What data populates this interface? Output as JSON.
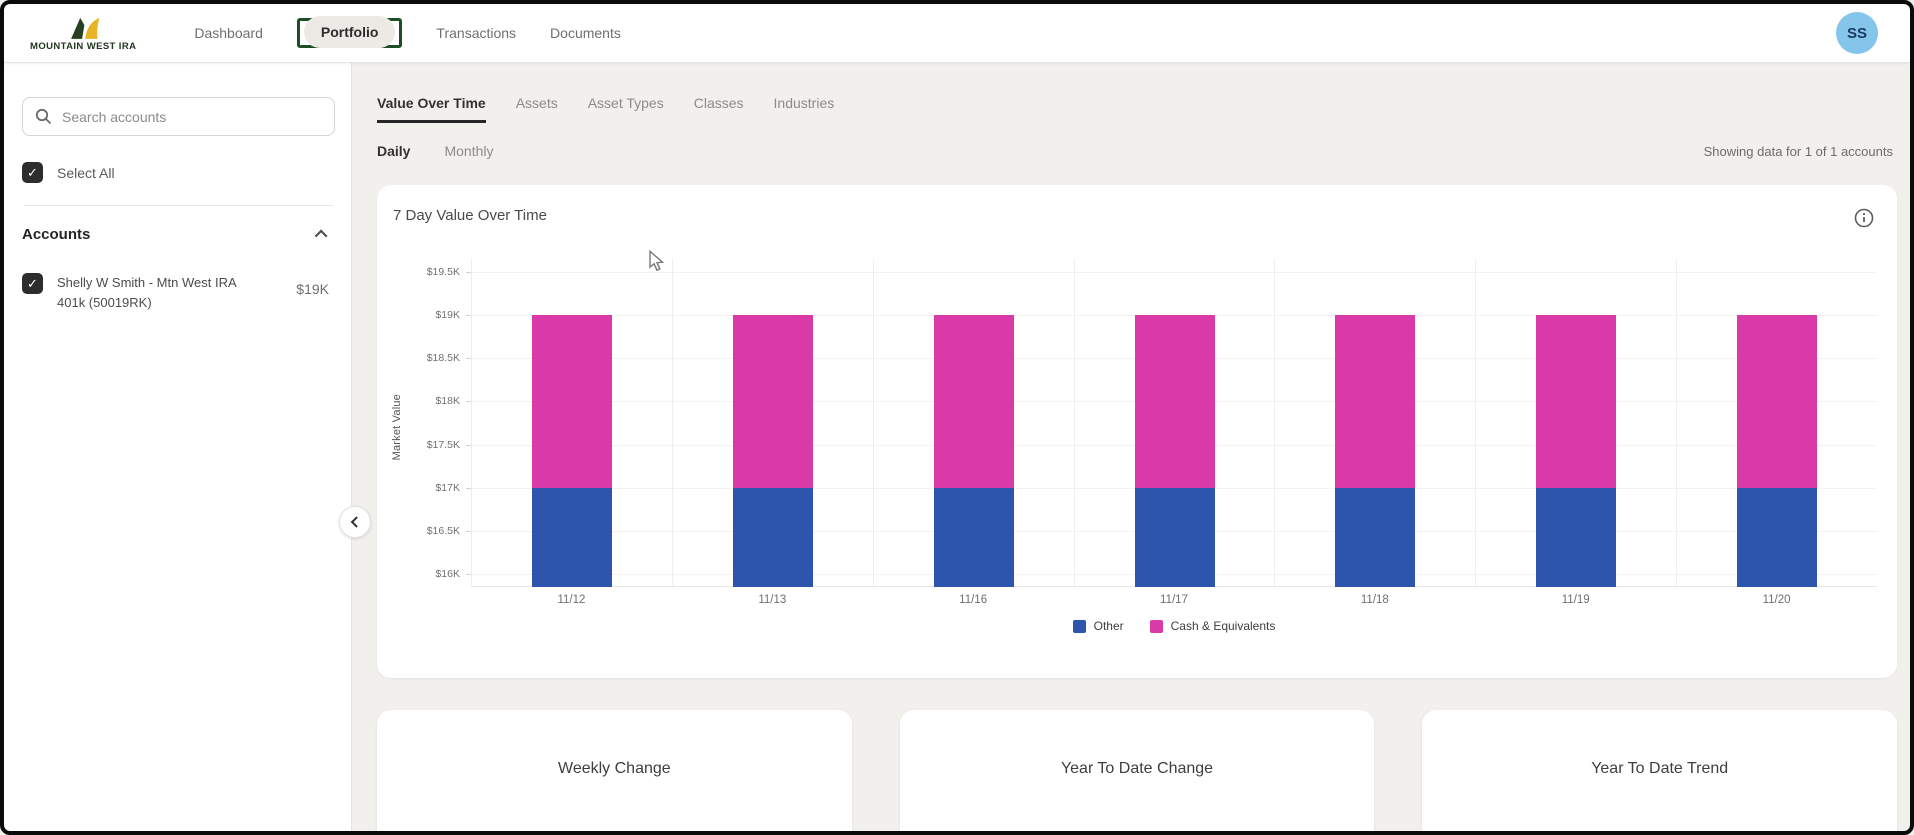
{
  "colors": {
    "annotation_green": "#1d4e27",
    "avatar_bg": "#85c5ec",
    "bar_other_blue": "#2e55ad",
    "bar_cash_pink": "#d93aa7",
    "page_background": "#f2f0ed"
  },
  "navbar": {
    "brand": "MOUNTAIN WEST IRA",
    "items": [
      {
        "label": "Dashboard",
        "active": false
      },
      {
        "label": "Portfolio",
        "active": true
      },
      {
        "label": "Transactions",
        "active": false
      },
      {
        "label": "Documents",
        "active": false
      }
    ],
    "avatar_initials": "SS"
  },
  "sidebar": {
    "search_placeholder": "Search accounts",
    "select_all": "Select All",
    "accounts_header": "Accounts",
    "accounts": [
      {
        "name": "Shelly W Smith - Mtn West IRA 401k (50019RK)",
        "value": "$19K",
        "checked": true
      }
    ]
  },
  "content": {
    "tabs": [
      {
        "label": "Value Over Time",
        "active": true
      },
      {
        "label": "Assets",
        "active": false
      },
      {
        "label": "Asset Types",
        "active": false
      },
      {
        "label": "Classes",
        "active": false
      },
      {
        "label": "Industries",
        "active": false
      }
    ],
    "period_options": [
      {
        "label": "Daily",
        "active": true
      },
      {
        "label": "Monthly",
        "active": false
      }
    ],
    "showing_text": "Showing data for 1 of 1 accounts",
    "bottom_cards": [
      "Weekly Change",
      "Year To Date Change",
      "Year To Date Trend"
    ]
  },
  "chart_card": {
    "title": "7 Day Value Over Time"
  },
  "chart_data": {
    "type": "bar",
    "stacked": true,
    "title": "7 Day Value Over Time",
    "categories": [
      "11/12",
      "11/13",
      "11/16",
      "11/17",
      "11/18",
      "11/19",
      "11/20"
    ],
    "series": [
      {
        "name": "Other",
        "color": "#2e55ad",
        "values": [
          17000,
          17000,
          17000,
          17000,
          17000,
          17000,
          17000
        ]
      },
      {
        "name": "Cash & Equivalents",
        "color": "#d93aa7",
        "values": [
          2000,
          2000,
          2000,
          2000,
          2000,
          2000,
          2000
        ]
      }
    ],
    "stacked_totals": [
      19000,
      19000,
      19000,
      19000,
      19000,
      19000,
      19000
    ],
    "ylabel": "Market Value",
    "xlabel": "",
    "y_axis": {
      "min": 16000,
      "max": 19500,
      "step": 500,
      "plot_top": 19650,
      "plot_bottom": 15850,
      "tick_prefix": "$",
      "tick_suffix": "K"
    },
    "legend_position": "bottom",
    "grid": true
  }
}
